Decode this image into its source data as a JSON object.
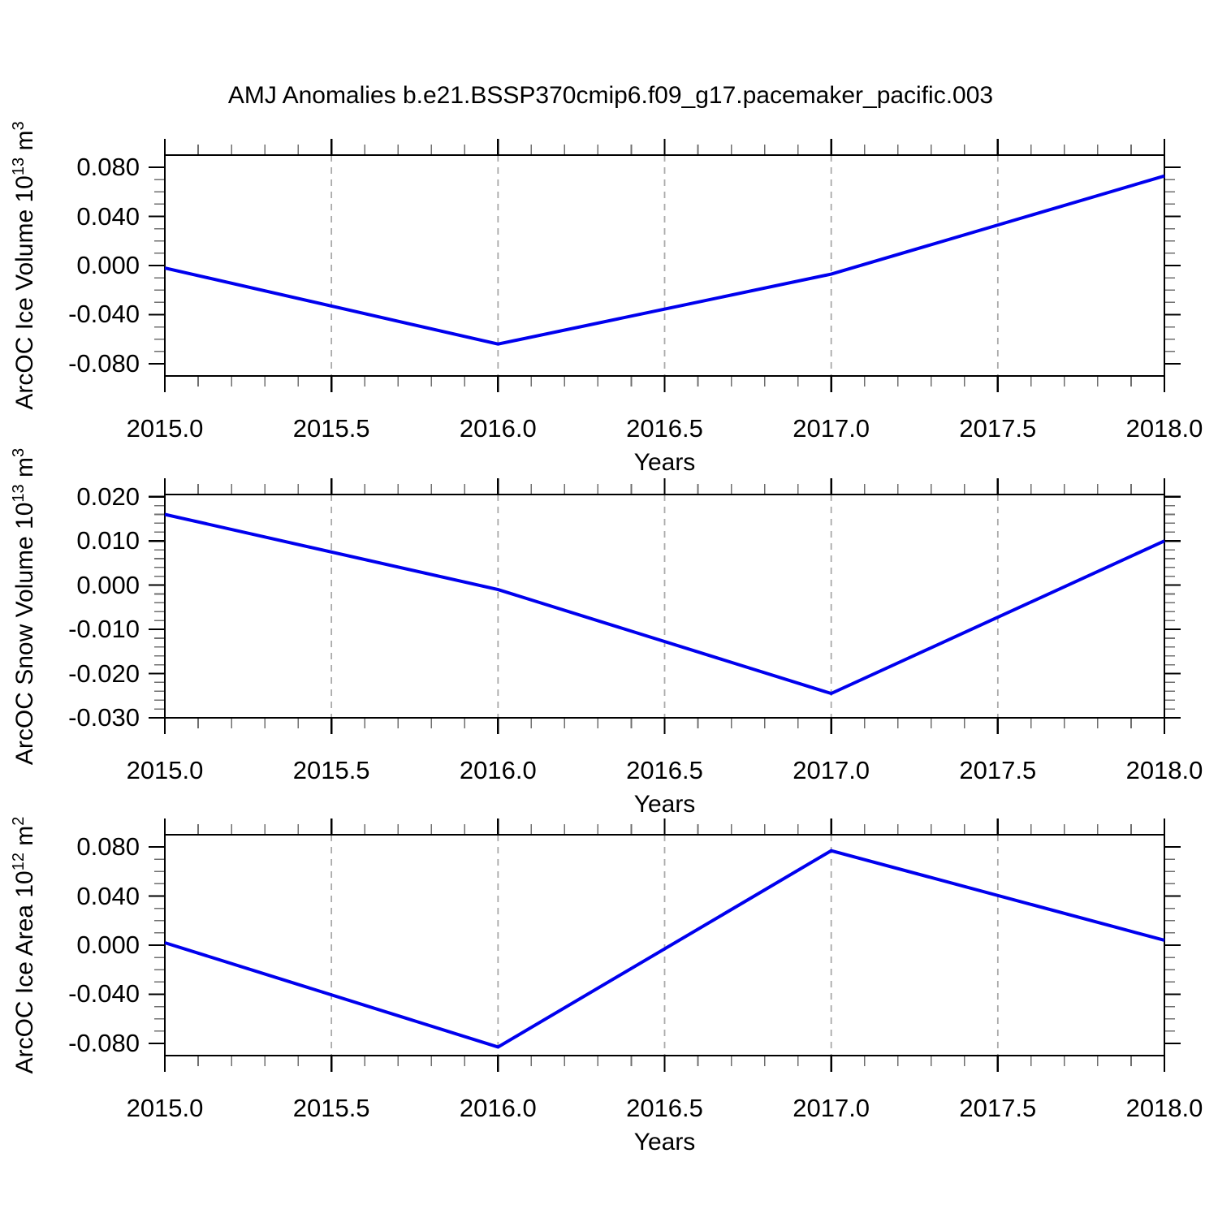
{
  "title": "AMJ Anomalies b.e21.BSSP370cmip6.f09_g17.pacemaker_pacific.003",
  "line_color": "#0000ee",
  "x_axis": {
    "title": "Years",
    "tick_values": [
      2015.0,
      2015.5,
      2016.0,
      2016.5,
      2017.0,
      2017.5,
      2018.0
    ],
    "tick_labels": [
      "2015.0",
      "2015.5",
      "2016.0",
      "2016.5",
      "2017.0",
      "2017.5",
      "2018.0"
    ],
    "minor_step": 0.1,
    "range": [
      2015.0,
      2018.0
    ],
    "gridlines_at": [
      2015.5,
      2016.0,
      2016.5,
      2017.0,
      2017.5
    ]
  },
  "chart_data": [
    {
      "type": "line",
      "ylabel_text": "ArcOC Ice Volume 10^13 m^3",
      "ylabel_parts": [
        {
          "t": "ArcOC Ice Volume 10"
        },
        {
          "t": "13",
          "sup": true
        },
        {
          "t": " m"
        },
        {
          "t": "3",
          "sup": true
        }
      ],
      "xlabel": "Years",
      "x": [
        2015.0,
        2016.0,
        2017.0,
        2018.0
      ],
      "values": [
        -0.002,
        -0.064,
        -0.007,
        0.073
      ],
      "ylim": [
        -0.09,
        0.09
      ],
      "ytick_values": [
        0.08,
        0.04,
        0.0,
        -0.04,
        -0.08
      ],
      "ytick_labels": [
        "0.080",
        "0.040",
        "0.000",
        "-0.040",
        "-0.080"
      ],
      "y_minor_step": 0.01,
      "grid": "vertical-dashed",
      "legend": "none"
    },
    {
      "type": "line",
      "ylabel_text": "ArcOC Snow Volume 10^13 m^3",
      "ylabel_parts": [
        {
          "t": "ArcOC Snow Volume 10"
        },
        {
          "t": "13",
          "sup": true
        },
        {
          "t": " m"
        },
        {
          "t": "3",
          "sup": true
        }
      ],
      "xlabel": "Years",
      "x": [
        2015.0,
        2016.0,
        2017.0,
        2018.0
      ],
      "values": [
        0.016,
        -0.001,
        -0.0245,
        0.01
      ],
      "ylim": [
        -0.03,
        0.0205
      ],
      "ytick_values": [
        0.02,
        0.01,
        0.0,
        -0.01,
        -0.02,
        -0.03
      ],
      "ytick_labels": [
        "0.020",
        "0.010",
        "0.000",
        "-0.010",
        "-0.020",
        "-0.030"
      ],
      "y_minor_step": 0.002,
      "grid": "vertical-dashed",
      "legend": "none"
    },
    {
      "type": "line",
      "ylabel_text": "ArcOC Ice Area 10^12 m^2",
      "ylabel_parts": [
        {
          "t": "ArcOC Ice Area 10"
        },
        {
          "t": "12",
          "sup": true
        },
        {
          "t": " m"
        },
        {
          "t": "2",
          "sup": true
        }
      ],
      "xlabel": "Years",
      "x": [
        2015.0,
        2016.0,
        2017.0,
        2018.0
      ],
      "values": [
        0.002,
        -0.083,
        0.077,
        0.004
      ],
      "ylim": [
        -0.09,
        0.09
      ],
      "ytick_values": [
        0.08,
        0.04,
        0.0,
        -0.04,
        -0.08
      ],
      "ytick_labels": [
        "0.080",
        "0.040",
        "0.000",
        "-0.040",
        "-0.080"
      ],
      "y_minor_step": 0.01,
      "grid": "vertical-dashed",
      "legend": "none"
    }
  ]
}
